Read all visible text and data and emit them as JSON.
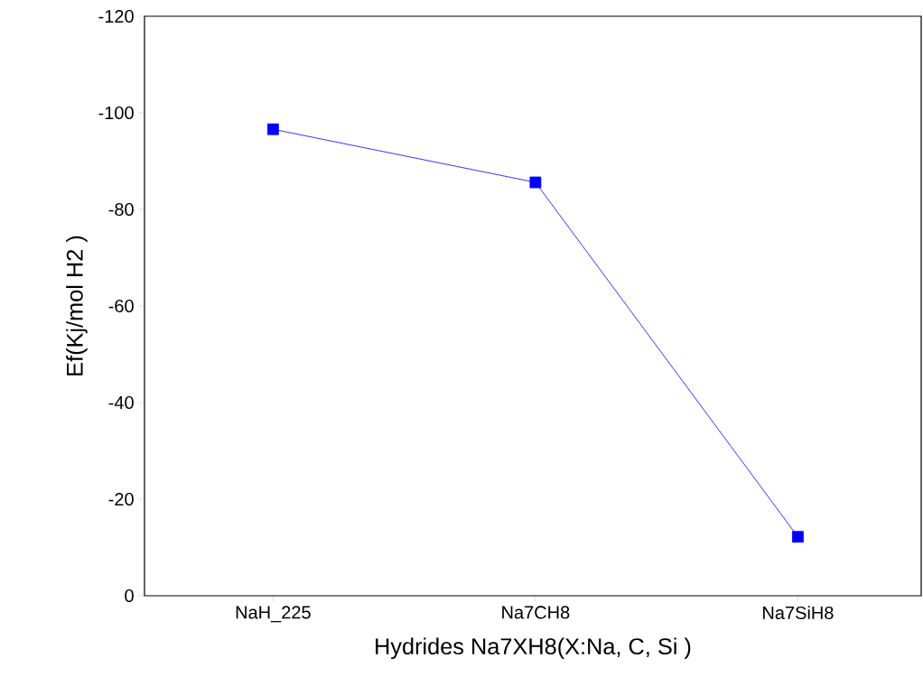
{
  "chart_data": {
    "type": "line",
    "xlabel": "Hydrides Na7XH8(X:Na, C, Si )",
    "ylabel": "Ef(Kj/mol H2 )",
    "categories": [
      "NaH_225",
      "Na7CH8",
      "Na7SiH8"
    ],
    "values": [
      -96.6,
      -85.6,
      -12.2
    ],
    "color": "#0000ff",
    "marker": "square",
    "line_style": "solid",
    "ylim": [
      0,
      -120
    ],
    "yticks": [
      0,
      -20,
      -40,
      -60,
      -80,
      -100,
      -120
    ],
    "grid": false
  }
}
